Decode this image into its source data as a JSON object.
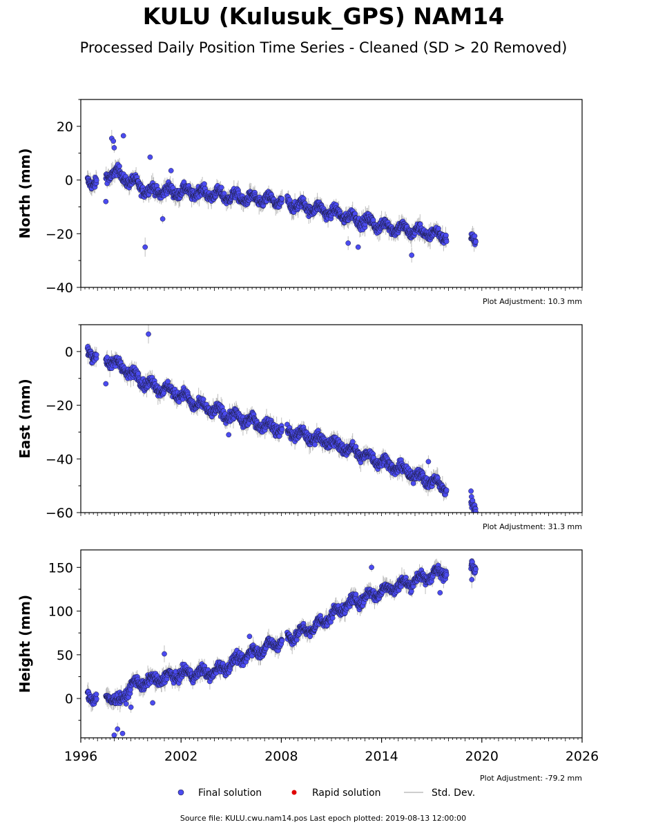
{
  "title": "KULU (Kulusuk_GPS) NAM14",
  "subtitle": "Processed Daily Position Time Series - Cleaned (SD > 20 Removed)",
  "source_note": "Source file: KULU.cwu.nam14.pos  Last epoch plotted: 2019-08-13 12:00:00",
  "legend": {
    "final": "Final solution",
    "rapid": "Rapid solution",
    "stddev": "Std. Dev."
  },
  "colors": {
    "final": "#4b4bf0",
    "final_edge": "#1a1a3a",
    "rapid": "#e00000",
    "stddev": "#bdbdbd"
  },
  "chart_data": [
    {
      "type": "scatter",
      "ylabel": "North (mm)",
      "adjustment": "Plot Adjustment: 10.3 mm",
      "xlim": [
        1996,
        2026
      ],
      "ylim": [
        -40,
        30
      ],
      "yticks": [
        -40,
        -20,
        0,
        20
      ],
      "ytick_labels": [
        "−40",
        "−20",
        "0",
        "20"
      ],
      "trend": [
        {
          "x": 1996.5,
          "y": -1
        },
        {
          "x": 1998.0,
          "y": 3
        },
        {
          "x": 2000.0,
          "y": -4
        },
        {
          "x": 2003.0,
          "y": -4.5
        },
        {
          "x": 2006.0,
          "y": -7
        },
        {
          "x": 2008.0,
          "y": -8
        },
        {
          "x": 2011.0,
          "y": -12
        },
        {
          "x": 2014.0,
          "y": -17
        },
        {
          "x": 2018.0,
          "y": -21
        },
        {
          "x": 2019.6,
          "y": -22
        }
      ],
      "segments": [
        [
          1996.4,
          1996.95
        ],
        [
          1997.5,
          2008.05
        ],
        [
          2008.35,
          2017.9
        ],
        [
          2019.35,
          2019.65
        ]
      ],
      "outliers": [
        {
          "x": 1997.5,
          "y": -8
        },
        {
          "x": 1997.85,
          "y": 15.5
        },
        {
          "x": 1997.95,
          "y": 14.5
        },
        {
          "x": 1998.0,
          "y": 12
        },
        {
          "x": 1998.55,
          "y": 16.5
        },
        {
          "x": 1999.85,
          "y": -25
        },
        {
          "x": 2000.15,
          "y": 8.5
        },
        {
          "x": 2000.9,
          "y": -14.5
        },
        {
          "x": 2001.4,
          "y": 3.5
        },
        {
          "x": 2012.0,
          "y": -23.5
        },
        {
          "x": 2012.6,
          "y": -25
        },
        {
          "x": 2015.8,
          "y": -28
        }
      ]
    },
    {
      "type": "scatter",
      "ylabel": "East (mm)",
      "adjustment": "Plot Adjustment: 31.3 mm",
      "xlim": [
        1996,
        2026
      ],
      "ylim": [
        -60,
        10
      ],
      "yticks": [
        -60,
        -40,
        -20,
        0
      ],
      "ytick_labels": [
        "−60",
        "−40",
        "−20",
        "0"
      ],
      "trend": [
        {
          "x": 1996.5,
          "y": 0
        },
        {
          "x": 1998.0,
          "y": -4
        },
        {
          "x": 2000.0,
          "y": -12
        },
        {
          "x": 2002.0,
          "y": -16
        },
        {
          "x": 2003.0,
          "y": -20
        },
        {
          "x": 2005.0,
          "y": -24
        },
        {
          "x": 2008.0,
          "y": -29
        },
        {
          "x": 2011.0,
          "y": -34
        },
        {
          "x": 2014.0,
          "y": -41
        },
        {
          "x": 2016.0,
          "y": -46
        },
        {
          "x": 2018.0,
          "y": -51
        },
        {
          "x": 2019.6,
          "y": -58
        }
      ],
      "segments": [
        [
          1996.4,
          1996.95
        ],
        [
          1997.5,
          2008.05
        ],
        [
          2008.35,
          2017.9
        ],
        [
          2019.35,
          2019.65
        ]
      ],
      "outliers": [
        {
          "x": 1997.5,
          "y": -12
        },
        {
          "x": 2000.05,
          "y": 6.5
        },
        {
          "x": 2004.85,
          "y": -31
        },
        {
          "x": 2016.8,
          "y": -41
        },
        {
          "x": 2019.35,
          "y": -52
        }
      ]
    },
    {
      "type": "scatter",
      "ylabel": "Height (mm)",
      "adjustment": "Plot Adjustment: -79.2 mm",
      "xlim": [
        1996,
        2026
      ],
      "ylim": [
        -45,
        170
      ],
      "yticks": [
        0,
        50,
        100,
        150
      ],
      "ytick_labels": [
        "0",
        "50",
        "100",
        "150"
      ],
      "xticks": [
        1996,
        2002,
        2008,
        2014,
        2020,
        2026
      ],
      "xtick_labels": [
        "1996",
        "2002",
        "2008",
        "2014",
        "2020",
        "2026"
      ],
      "trend": [
        {
          "x": 1996.5,
          "y": 2
        },
        {
          "x": 1997.5,
          "y": 5
        },
        {
          "x": 1998.3,
          "y": -5
        },
        {
          "x": 1999.0,
          "y": 15
        },
        {
          "x": 2002.0,
          "y": 28
        },
        {
          "x": 2004.0,
          "y": 30
        },
        {
          "x": 2006.0,
          "y": 50
        },
        {
          "x": 2008.0,
          "y": 66
        },
        {
          "x": 2010.0,
          "y": 82
        },
        {
          "x": 2012.0,
          "y": 108
        },
        {
          "x": 2014.0,
          "y": 123
        },
        {
          "x": 2016.0,
          "y": 135
        },
        {
          "x": 2018.0,
          "y": 147
        },
        {
          "x": 2019.6,
          "y": 152
        }
      ],
      "segments": [
        [
          1996.4,
          1996.95
        ],
        [
          1997.5,
          2008.05
        ],
        [
          2008.35,
          2017.9
        ],
        [
          2019.35,
          2019.65
        ]
      ],
      "outliers": [
        {
          "x": 1998.0,
          "y": -42
        },
        {
          "x": 1998.2,
          "y": -35
        },
        {
          "x": 1998.5,
          "y": -40
        },
        {
          "x": 1999.0,
          "y": -10
        },
        {
          "x": 2000.3,
          "y": -5
        },
        {
          "x": 2001.0,
          "y": 51
        },
        {
          "x": 2006.1,
          "y": 71
        },
        {
          "x": 2013.4,
          "y": 150
        },
        {
          "x": 2017.5,
          "y": 121
        },
        {
          "x": 2019.4,
          "y": 136
        }
      ]
    }
  ]
}
